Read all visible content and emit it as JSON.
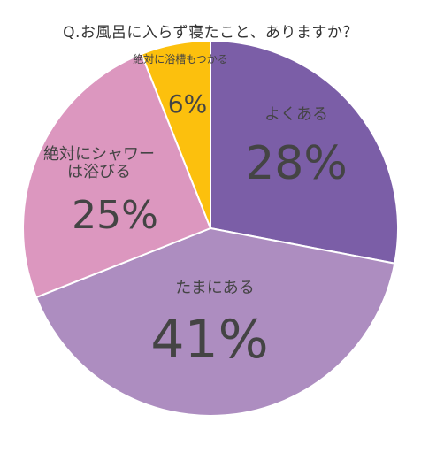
{
  "chart_data": {
    "type": "pie",
    "title": "Q.お風呂に入らず寝たこと、ありますか？",
    "slices": [
      {
        "label": "よくある",
        "value": 28,
        "display": "28%",
        "color": "#7b5ea7"
      },
      {
        "label": "たまにある",
        "value": 41,
        "display": "41%",
        "color": "#ad8dc0"
      },
      {
        "label": "絶対にシャワーは浴びる",
        "label_lines": [
          "絶対にシャワー",
          "は浴びる"
        ],
        "value": 25,
        "display": "25%",
        "color": "#dc97bf"
      },
      {
        "label": "絶対に浴槽もつかる",
        "value": 6,
        "display": "6%",
        "color": "#fcc00d"
      }
    ]
  }
}
